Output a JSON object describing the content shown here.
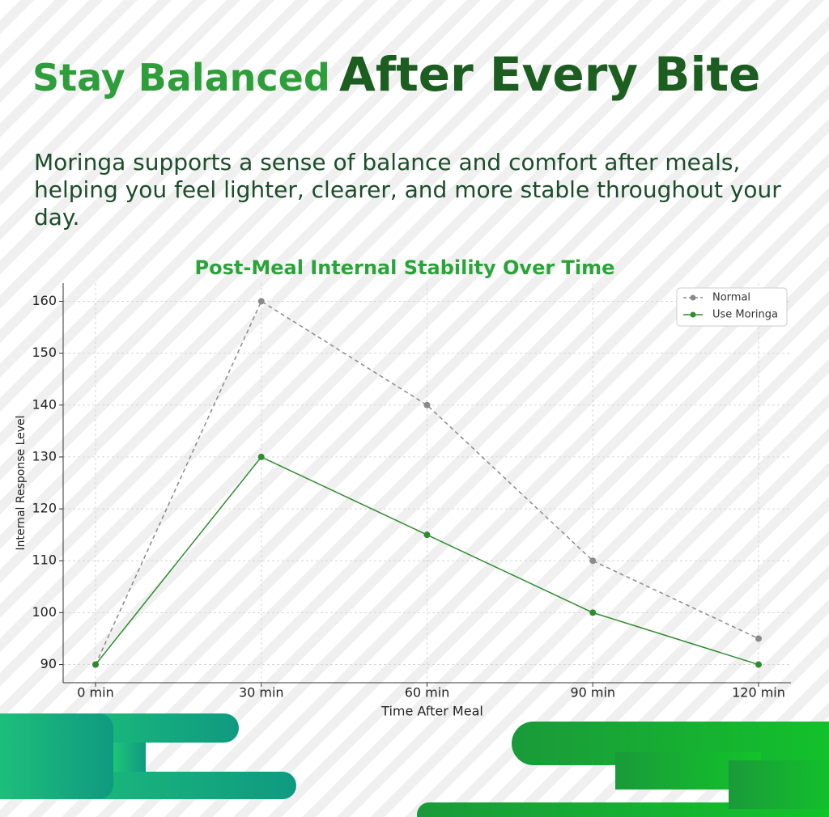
{
  "header": {
    "title_lead": "Stay Balanced",
    "title_main": "After Every Bite",
    "description": "Moringa supports a sense of balance and comfort after meals, helping you feel lighter, clearer, and more stable throughout your day."
  },
  "chart_data": {
    "type": "line",
    "title": "Post-Meal Internal Stability Over Time",
    "xlabel": "Time After Meal",
    "ylabel": "Internal Response Level",
    "categories": [
      "0 min",
      "30 min",
      "60 min",
      "90 min",
      "120 min"
    ],
    "series": [
      {
        "name": "Normal",
        "color": "#8a8a8a",
        "dashed": true,
        "values": [
          90,
          160,
          140,
          110,
          95
        ]
      },
      {
        "name": "Use Moringa",
        "color": "#2e8b2e",
        "dashed": false,
        "values": [
          90,
          130,
          115,
          100,
          90
        ]
      }
    ],
    "ylim": [
      86.5,
      163.5
    ],
    "yticks": [
      90,
      100,
      110,
      120,
      130,
      140,
      150,
      160
    ],
    "grid": true,
    "legend": "upper right"
  }
}
